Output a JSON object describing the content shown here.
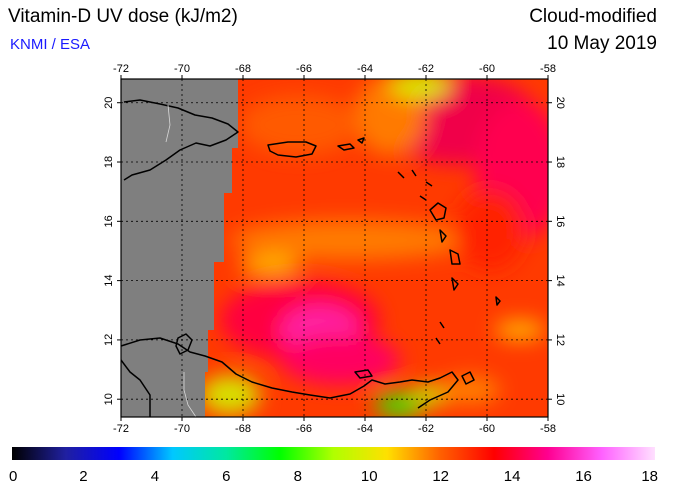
{
  "header": {
    "title": "Vitamin-D UV dose (kJ/m2)",
    "source": "KNMI / ESA",
    "product": "Cloud-modified",
    "date": "10 May 2019"
  },
  "map": {
    "lon_ticks": [
      "-72",
      "-70",
      "-68",
      "-66",
      "-64",
      "-62",
      "-60",
      "-58"
    ],
    "lat_ticks": [
      "10",
      "12",
      "14",
      "16",
      "18",
      "20"
    ],
    "colors": {
      "nodata": "#7f7f7f",
      "coast": "#000000",
      "border": "#d8d8d8"
    }
  },
  "colorbar": {
    "labels": [
      "0",
      "2",
      "4",
      "6",
      "8",
      "10",
      "12",
      "14",
      "16",
      "18"
    ],
    "min": 0,
    "max": 18,
    "stops": [
      "#000000",
      "#2020a0",
      "#0000ff",
      "#00c8ff",
      "#00e8a0",
      "#00ff00",
      "#b0ff00",
      "#ffe000",
      "#ff6000",
      "#ff0000",
      "#ff0090",
      "#ff60ff",
      "#ffe0ff"
    ]
  }
}
